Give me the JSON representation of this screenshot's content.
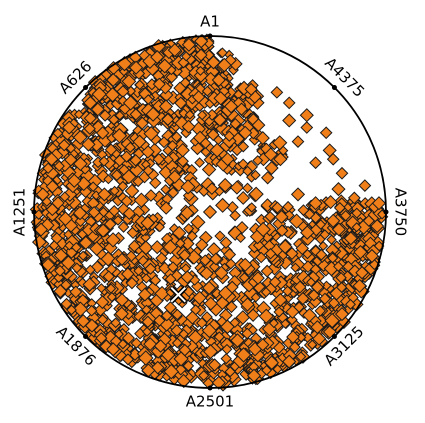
{
  "chart_data": {
    "type": "scatter",
    "subtype": "radviz",
    "title": "",
    "grid": false,
    "anchors": [
      {
        "label": "A1",
        "angle_deg": 90
      },
      {
        "label": "A626",
        "angle_deg": 135
      },
      {
        "label": "A1251",
        "angle_deg": 180
      },
      {
        "label": "A1876",
        "angle_deg": 225
      },
      {
        "label": "A2501",
        "angle_deg": 270
      },
      {
        "label": "A3125",
        "angle_deg": 315
      },
      {
        "label": "A3750",
        "angle_deg": 0
      },
      {
        "label": "A4375",
        "angle_deg": 45
      }
    ],
    "series": [
      {
        "marker": "diamond",
        "color": "#f07f1a",
        "edge_color": "#1a1a1a",
        "description_points": "dense cloud of a few thousand points filling the disc except the upper-right sector between A1 and A3750",
        "sample_points": [
          [
            -0.05,
            0.97
          ],
          [
            -0.12,
            0.95
          ],
          [
            -0.2,
            0.92
          ],
          [
            -0.3,
            0.88
          ],
          [
            -0.42,
            0.82
          ],
          [
            -0.55,
            0.75
          ],
          [
            -0.68,
            0.62
          ],
          [
            -0.8,
            0.48
          ],
          [
            -0.9,
            0.3
          ],
          [
            -0.95,
            0.1
          ],
          [
            -0.96,
            -0.1
          ],
          [
            -0.92,
            -0.3
          ],
          [
            -0.85,
            -0.45
          ],
          [
            -0.72,
            -0.62
          ],
          [
            -0.55,
            -0.78
          ],
          [
            -0.35,
            -0.9
          ],
          [
            -0.15,
            -0.96
          ],
          [
            0.05,
            -0.97
          ],
          [
            0.25,
            -0.93
          ],
          [
            0.45,
            -0.85
          ],
          [
            0.62,
            -0.72
          ],
          [
            0.75,
            -0.58
          ],
          [
            0.85,
            -0.42
          ],
          [
            0.92,
            -0.25
          ],
          [
            0.95,
            -0.08
          ],
          [
            0.96,
            0.05
          ],
          [
            0.6,
            0.05
          ],
          [
            0.35,
            0.25
          ],
          [
            0.2,
            0.45
          ],
          [
            0.12,
            0.6
          ],
          [
            0.05,
            0.75
          ],
          [
            0.02,
            0.85
          ],
          [
            0.3,
            0.42
          ],
          [
            0.4,
            0.3
          ],
          [
            0.5,
            0.1
          ],
          [
            0.7,
            -0.05
          ],
          [
            0.8,
            -0.15
          ],
          [
            -0.4,
            0.4
          ],
          [
            -0.2,
            0.2
          ],
          [
            0.0,
            0.0
          ],
          [
            -0.3,
            -0.2
          ],
          [
            0.2,
            -0.3
          ],
          [
            -0.6,
            0.1
          ],
          [
            0.4,
            -0.5
          ],
          [
            -0.1,
            -0.6
          ],
          [
            -0.5,
            -0.5
          ],
          [
            0.1,
            0.3
          ],
          [
            -0.25,
            0.6
          ],
          [
            0.55,
            0.55
          ],
          [
            0.45,
            0.52
          ],
          [
            0.68,
            0.35
          ],
          [
            0.73,
            0.13
          ]
        ]
      }
    ],
    "center_marker": {
      "marker": "x",
      "x": -0.18,
      "y": -0.47
    }
  }
}
